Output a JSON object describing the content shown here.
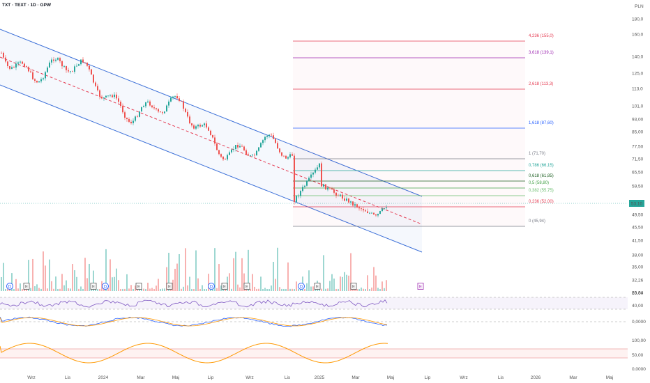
{
  "header": {
    "title": "TXT · TEXT · 1D · GPW",
    "currency": "PLN"
  },
  "colors": {
    "up": "#26a69a",
    "down": "#ef5350",
    "channel": "#3b6fd8",
    "midline": "#e53950",
    "rsi": "#7e57c2",
    "macd": "#2962ff",
    "signal": "#ff9800"
  },
  "price_axis": [
    "180,0",
    "160,0",
    "140,0",
    "125,0",
    "113,0",
    "101,0",
    "93,00",
    "85,00",
    "77,50",
    "71,50",
    "65,50",
    "59,50",
    "53,10",
    "49,50",
    "45,50",
    "41,50",
    "38,00",
    "35,00",
    "32,26",
    "29,84"
  ],
  "last_price": "53,10",
  "time_axis": [
    "Wrz",
    "Lis",
    "2024",
    "Mar",
    "Maj",
    "Lip",
    "Wrz",
    "Lis",
    "2025",
    "Mar",
    "Maj",
    "Lip",
    "Wrz",
    "Lis",
    "2026",
    "Mar",
    "Maj"
  ],
  "rsi_axis": [
    "60,00",
    "40,00"
  ],
  "macd_axis": [
    "0,0000"
  ],
  "osc_axis": [
    "100,00",
    "50,00",
    "0,0000"
  ],
  "events": [
    "D",
    "E",
    "E",
    "D",
    "E",
    "E",
    "D",
    "E",
    "E",
    "D",
    "E",
    "E"
  ],
  "chart_data": {
    "type": "candlestick",
    "fibonacci": [
      {
        "level": "4,236",
        "price": "155,0",
        "color": "#e53950"
      },
      {
        "level": "3,618",
        "price": "139,1",
        "color": "#9c27b0"
      },
      {
        "level": "2,618",
        "price": "113,3",
        "color": "#e53950"
      },
      {
        "level": "1,618",
        "price": "87,60",
        "color": "#2962ff"
      },
      {
        "level": "1",
        "price": "71,70",
        "color": "#787b86"
      },
      {
        "level": "0,786",
        "price": "66,15",
        "color": "#26a69a"
      },
      {
        "level": "0,618",
        "price": "61,85",
        "color": "#1b5e20"
      },
      {
        "level": "0,5",
        "price": "58,80",
        "color": "#43a047"
      },
      {
        "level": "0,382",
        "price": "55,75",
        "color": "#66bb6a"
      },
      {
        "level": "0,236",
        "price": "52,00",
        "color": "#e53950"
      },
      {
        "level": "0",
        "price": "45,94",
        "color": "#787b86"
      }
    ]
  }
}
